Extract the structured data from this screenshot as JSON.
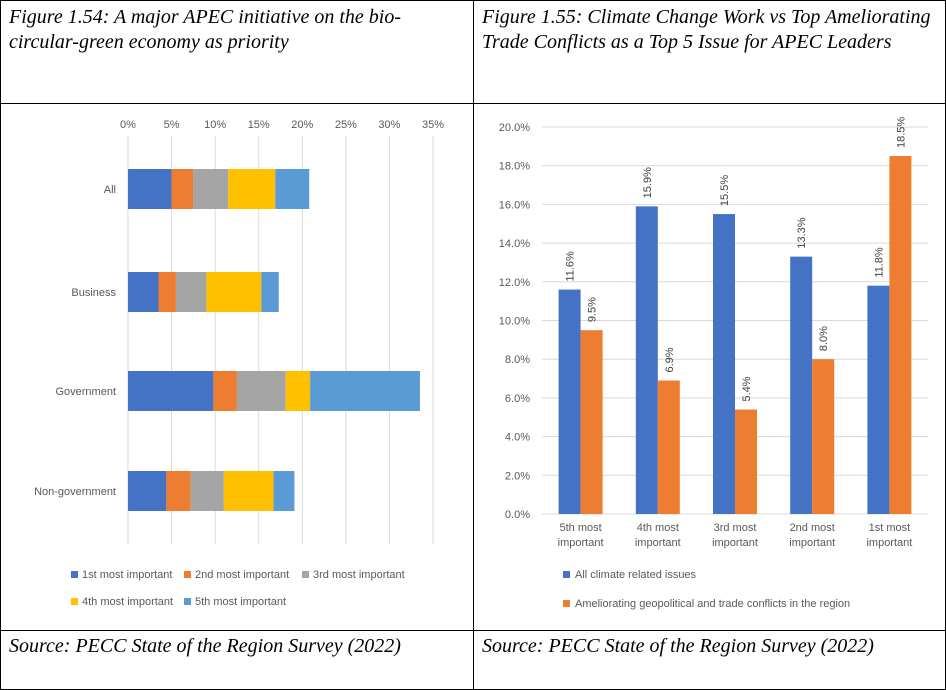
{
  "left_panel": {
    "caption": "Figure 1.54: A major APEC initiative on the bio-circular-green economy as priority",
    "source": "Source: PECC State of the Region Survey (2022)"
  },
  "right_panel": {
    "caption": "Figure 1.55: Climate Change Work vs Top Ameliorating Trade Conflicts as a Top 5 Issue for APEC Leaders",
    "source": "Source: PECC State of the Region Survey (2022)"
  },
  "chart_data": [
    {
      "type": "bar",
      "orientation": "horizontal",
      "stacked": true,
      "categories": [
        "All",
        "Business",
        "Government",
        "Non-government"
      ],
      "series": [
        {
          "name": "1st most important",
          "color": "#4472C4",
          "values": [
            5.0,
            3.5,
            9.8,
            4.4
          ]
        },
        {
          "name": "2nd most important",
          "color": "#ED7D31",
          "values": [
            2.5,
            2.0,
            2.7,
            2.8
          ]
        },
        {
          "name": "3rd most important",
          "color": "#A5A5A5",
          "values": [
            4.0,
            3.5,
            5.6,
            3.8
          ]
        },
        {
          "name": "4th most important",
          "color": "#FFC000",
          "values": [
            5.4,
            6.3,
            2.8,
            5.7
          ]
        },
        {
          "name": "5th most important",
          "color": "#5B9BD5",
          "values": [
            3.9,
            2.0,
            12.6,
            2.4
          ]
        }
      ],
      "xlim": [
        0,
        35
      ],
      "xticks": [
        "0%",
        "5%",
        "10%",
        "15%",
        "20%",
        "25%",
        "30%",
        "35%"
      ],
      "grid": true,
      "legend_placement": "bottom"
    },
    {
      "type": "bar",
      "orientation": "vertical",
      "categories": [
        "5th most important",
        "4th most important",
        "3rd most important",
        "2nd most important",
        "1st most important"
      ],
      "series": [
        {
          "name": "All climate related issues",
          "color": "#4472C4",
          "values": [
            11.6,
            15.9,
            15.5,
            13.3,
            11.8
          ],
          "labels": [
            "11.6%",
            "15.9%",
            "15.5%",
            "13.3%",
            "11.8%"
          ]
        },
        {
          "name": "Ameliorating geopolitical and trade conflicts in the region",
          "color": "#ED7D31",
          "values": [
            9.5,
            6.9,
            5.4,
            8.0,
            18.5
          ],
          "labels": [
            "9.5%",
            "6.9%",
            "5.4%",
            "8.0%",
            "18.5%"
          ]
        }
      ],
      "ylim": [
        0,
        20
      ],
      "yticks": [
        "0.0%",
        "2.0%",
        "4.0%",
        "6.0%",
        "8.0%",
        "10.0%",
        "12.0%",
        "14.0%",
        "16.0%",
        "18.0%",
        "20.0%"
      ],
      "grid": true,
      "legend_placement": "bottom"
    }
  ]
}
